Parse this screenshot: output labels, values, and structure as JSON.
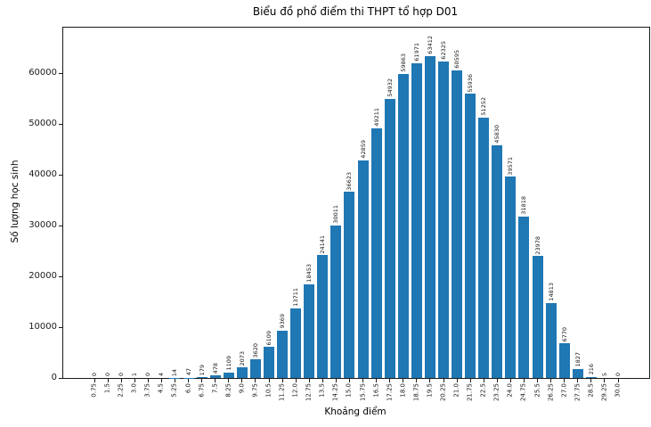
{
  "chart_data": {
    "type": "bar",
    "title": "Biểu đồ phổ điểm thi THPT tổ hợp D01",
    "xlabel": "Khoảng điểm",
    "ylabel": "Số lượng học sinh",
    "categories": [
      "0.75",
      "1.5",
      "2.25",
      "3.0",
      "3.75",
      "4.5",
      "5.25",
      "6.0",
      "6.75",
      "7.5",
      "8.25",
      "9.0",
      "9.75",
      "10.5",
      "11.25",
      "12.0",
      "12.75",
      "13.5",
      "14.25",
      "15.0",
      "15.75",
      "16.5",
      "17.25",
      "18.0",
      "18.75",
      "19.5",
      "20.25",
      "21.0",
      "21.75",
      "22.5",
      "23.25",
      "24.0",
      "24.75",
      "25.5",
      "26.25",
      "27.0",
      "27.75",
      "28.5",
      "29.25",
      "30.0"
    ],
    "values": [
      0,
      0,
      0,
      1,
      0,
      4,
      14,
      47,
      179,
      478,
      1109,
      2073,
      3620,
      6109,
      9369,
      13711,
      18453,
      24141,
      30011,
      36623,
      42859,
      49211,
      54932,
      59863,
      61971,
      63412,
      62325,
      60595,
      55936,
      51252,
      45830,
      39571,
      31818,
      23978,
      14813,
      6770,
      1827,
      216,
      5,
      0
    ],
    "bar_value_labels_visible": true,
    "y_ticks": [
      0,
      10000,
      20000,
      30000,
      40000,
      50000,
      60000
    ],
    "ylim": [
      0,
      68950
    ],
    "bar_color": "#1f77b4",
    "grid": false,
    "legend_position": "none",
    "tick_label_rotation": "vertical"
  }
}
